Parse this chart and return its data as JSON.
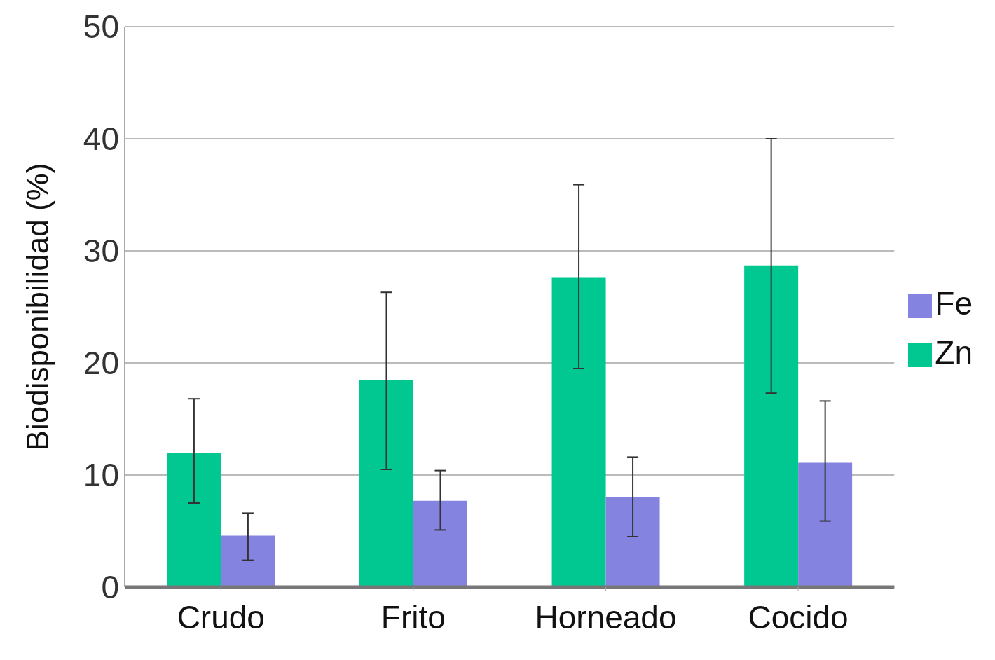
{
  "chart_data": {
    "type": "bar",
    "ylabel": "Biodisponibilidad (%)",
    "categories": [
      "Crudo",
      "Frito",
      "Horneado",
      "Cocido"
    ],
    "series": [
      {
        "name": "Zn",
        "color": "#00c890",
        "values": [
          12.0,
          18.5,
          27.6,
          28.7
        ],
        "errors": [
          [
            7.5,
            16.8
          ],
          [
            10.5,
            26.3
          ],
          [
            19.5,
            35.9
          ],
          [
            17.3,
            40.0
          ]
        ]
      },
      {
        "name": "Fe",
        "color": "#8484e0",
        "values": [
          4.6,
          7.7,
          8.0,
          11.1
        ],
        "errors": [
          [
            2.4,
            6.6
          ],
          [
            5.1,
            10.4
          ],
          [
            4.5,
            11.6
          ],
          [
            5.9,
            16.6
          ]
        ]
      }
    ],
    "ylim": [
      0,
      50
    ],
    "yticks": [
      0,
      10,
      20,
      30,
      40,
      50
    ],
    "grid": "y",
    "legend": "right"
  }
}
